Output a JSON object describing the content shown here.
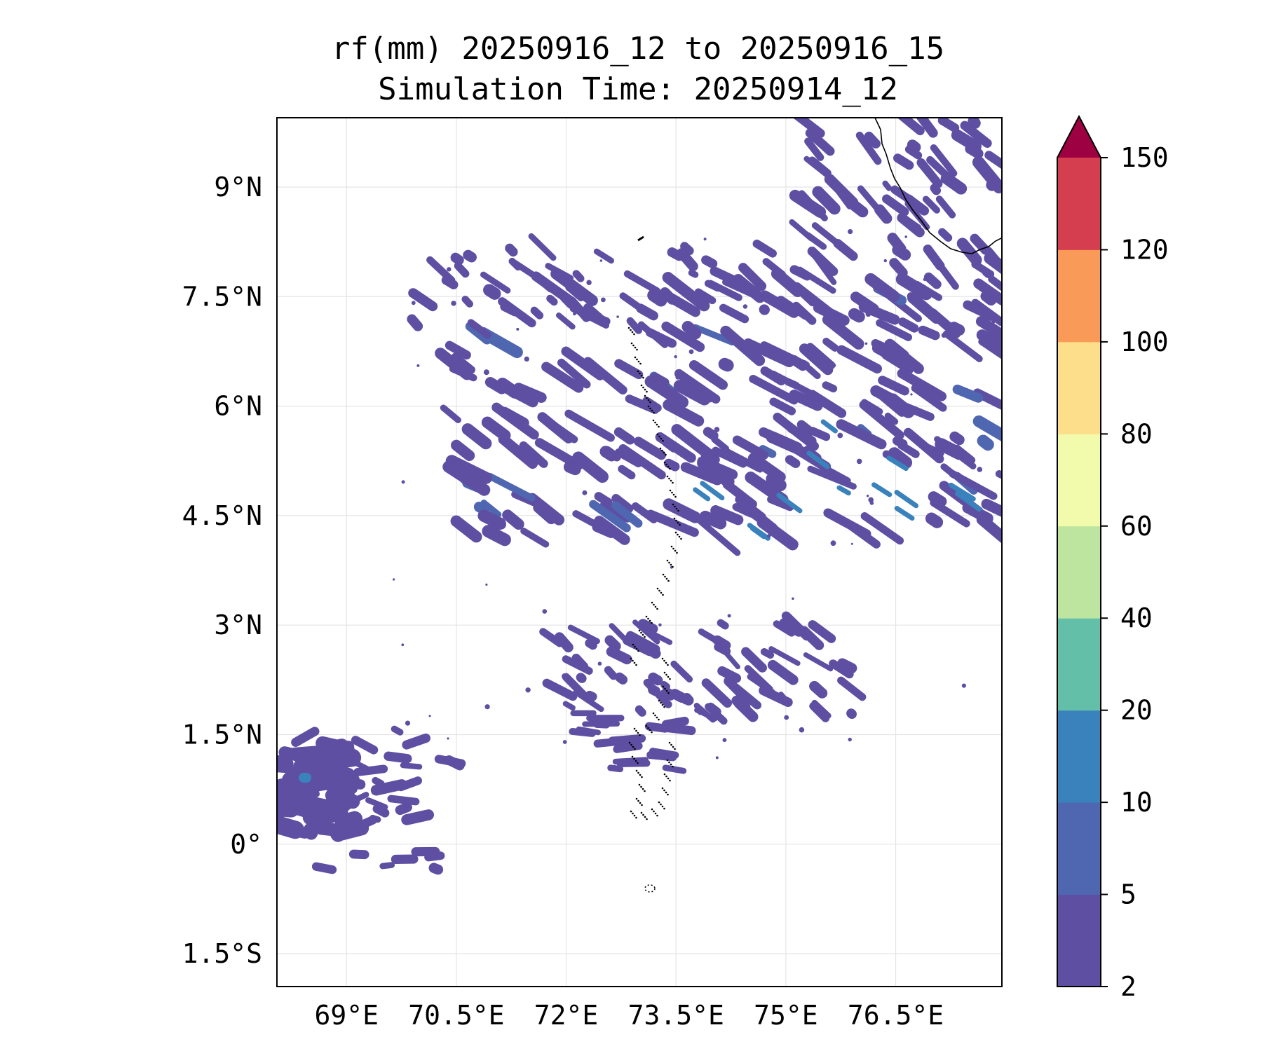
{
  "title": {
    "line1": "rf(mm) 20250916_12 to 20250916_15",
    "line2": "Simulation Time: 20250914_12"
  },
  "map": {
    "lat_labels": [
      "9°N",
      "7.5°N",
      "6°N",
      "4.5°N",
      "3°N",
      "1.5°N",
      "0°",
      "1.5°S"
    ],
    "lat_values": [
      9,
      7.5,
      6,
      4.5,
      3,
      1.5,
      0,
      -1.5
    ],
    "lon_labels": [
      "69°E",
      "70.5°E",
      "72°E",
      "73.5°E",
      "75°E",
      "76.5°E"
    ],
    "lon_values": [
      69,
      70.5,
      72,
      73.5,
      75,
      76.5
    ],
    "lon_range": [
      68.05,
      77.95
    ],
    "lat_range": [
      -1.95,
      9.95
    ],
    "grid": true,
    "rain_color": "#5e4fa2"
  },
  "colorbar": {
    "levels": [
      "2",
      "5",
      "10",
      "20",
      "40",
      "60",
      "80",
      "100",
      "120",
      "150"
    ],
    "colors": [
      "#5e4fa2",
      "#4f66b0",
      "#3a82bc",
      "#64bfa9",
      "#bde5a0",
      "#f2faac",
      "#fddf8b",
      "#f99a58",
      "#d53e4f"
    ],
    "extend_color": "#9e0142",
    "extend": "max",
    "units": "mm"
  }
}
